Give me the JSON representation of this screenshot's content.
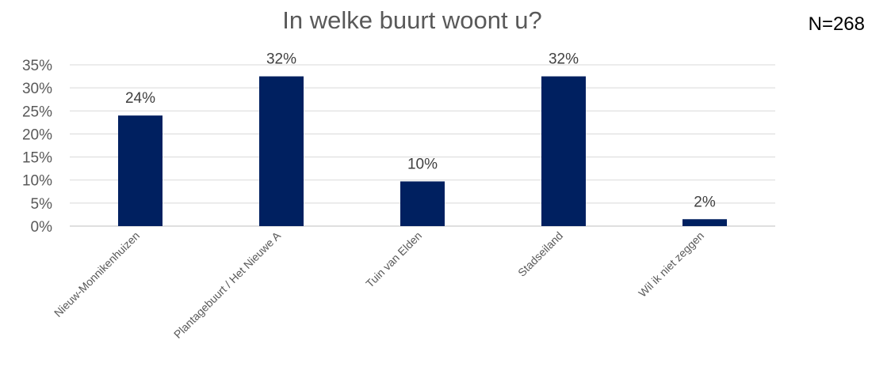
{
  "chart_data": {
    "type": "bar",
    "title": "In welke buurt woont u?",
    "annotation": "N=268",
    "categories": [
      "Nieuw-Monnikenhuizen",
      "Plantagebuurt / Het Nieuwe A",
      "Tuin van Elden",
      "Stadseiland",
      "Wil ik niet zeggen"
    ],
    "values": [
      24,
      32.5,
      9.7,
      32.5,
      1.5
    ],
    "data_labels": [
      "24%",
      "32%",
      "10%",
      "32%",
      "2%"
    ],
    "ylim": [
      0,
      35
    ],
    "yticks": [
      "0%",
      "5%",
      "10%",
      "15%",
      "20%",
      "25%",
      "30%",
      "35%"
    ],
    "grid": true,
    "bar_color": "#002060"
  }
}
